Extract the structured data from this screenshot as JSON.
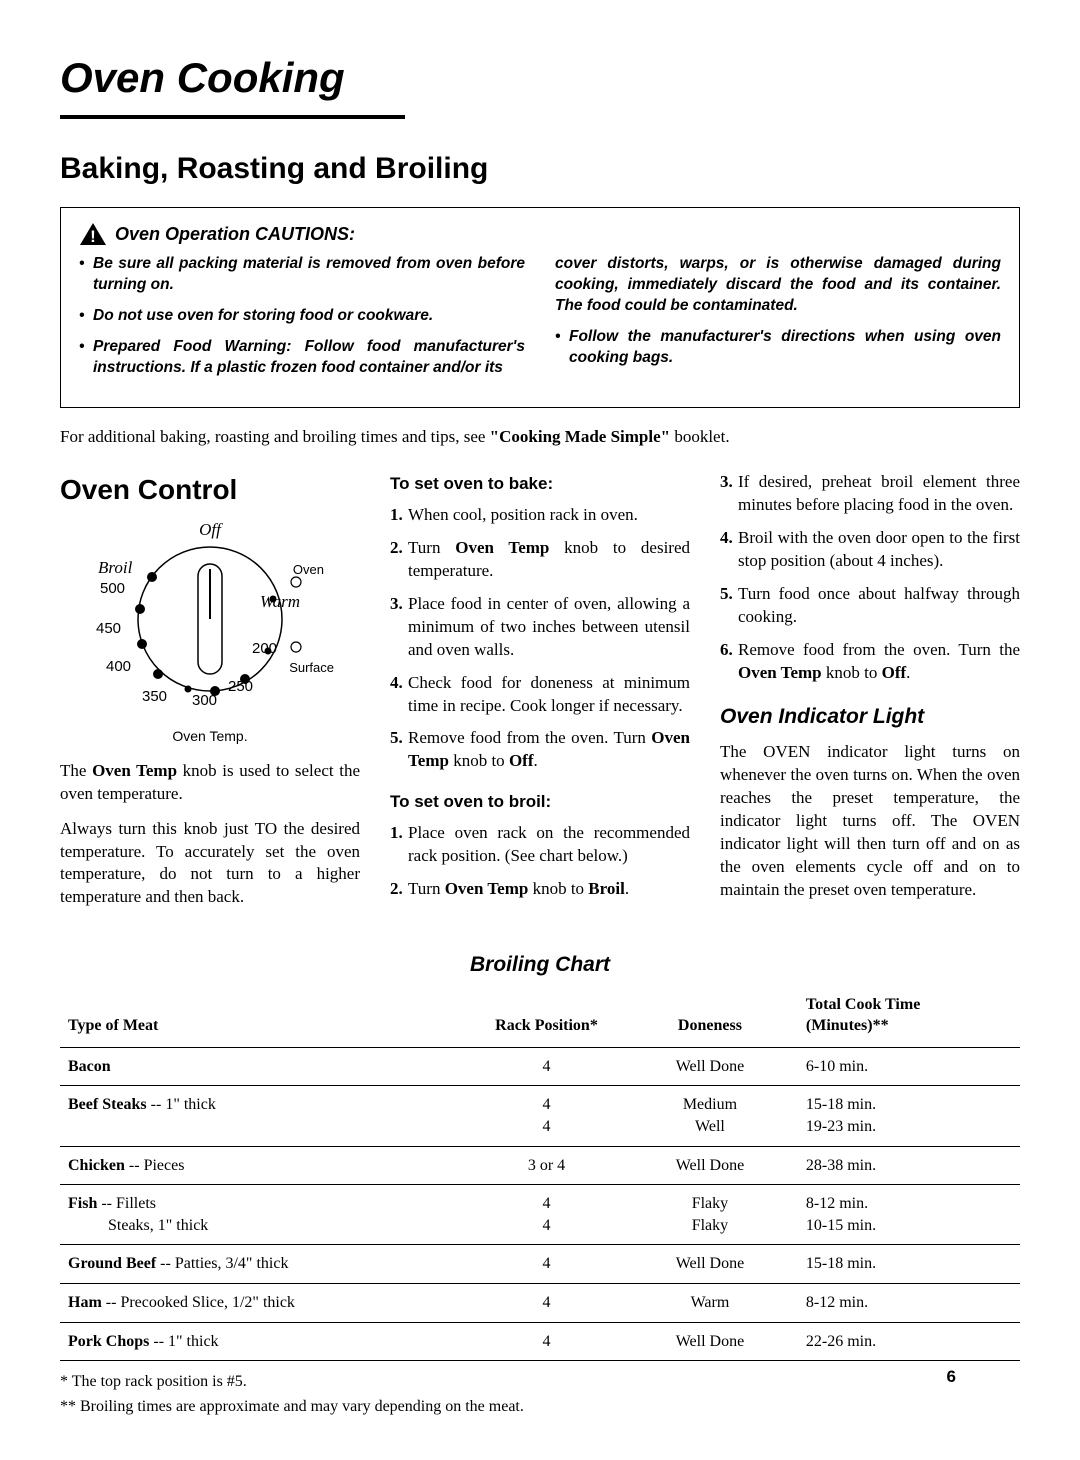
{
  "page": {
    "title": "Oven Cooking",
    "section": "Baking, Roasting and Broiling",
    "number": "6"
  },
  "caution": {
    "heading": "Oven Operation CAUTIONS:",
    "left": [
      "Be sure all packing material is removed from oven before turning on.",
      "Do not use oven for storing food or cookware.",
      "Prepared Food Warning: Follow food manufacturer's instructions. If a plastic frozen food container and/or its"
    ],
    "right_cont": "cover distorts, warps, or is otherwise damaged during cooking, immediately discard the food and its container. The food could be contaminated.",
    "right": [
      "Follow the manufacturer's directions when using oven cooking bags."
    ]
  },
  "additional_info": "For additional baking, roasting and broiling times and tips, see \"Cooking Made Simple\" booklet.",
  "additional_info_bold": "\"Cooking Made Simple\"",
  "oven_control": {
    "title": "Oven Control",
    "dial": {
      "off": "Off",
      "broil": "Broil",
      "warm": "Warm",
      "oven": "Oven",
      "surface": "Surface",
      "temps": [
        "500",
        "450",
        "400",
        "350",
        "300",
        "250",
        "200"
      ],
      "caption": "Oven Temp."
    },
    "p1_pre": "The ",
    "p1_bold": "Oven Temp",
    "p1_post": " knob is used to select the oven temperature.",
    "p2": "Always turn this knob just TO the desired temperature. To accurately set the oven temperature, do not turn to a higher temperature and then back."
  },
  "bake": {
    "heading": "To set oven to bake:",
    "steps": [
      {
        "t": "When cool, position rack in oven."
      },
      {
        "pre": "Turn ",
        "b": "Oven Temp",
        "post": " knob to desired temperature."
      },
      {
        "t": "Place food in center of oven, allowing a minimum of two inches between utensil and oven walls."
      },
      {
        "t": "Check food for doneness at minimum time in recipe. Cook longer if necessary."
      },
      {
        "pre": "Remove food from the oven. Turn ",
        "b": "Oven Temp",
        "post": " knob to ",
        "b2": "Off",
        "post2": "."
      }
    ]
  },
  "broil": {
    "heading": "To set oven to broil:",
    "steps": [
      {
        "t": "Place oven rack on the recommended rack position. (See chart below.)"
      },
      {
        "pre": "Turn ",
        "b": "Oven Temp",
        "post": " knob to ",
        "b2": "Broil",
        "post2": "."
      }
    ]
  },
  "broil_col3": {
    "steps": [
      {
        "t": "If desired, preheat broil element three minutes before placing food in the oven."
      },
      {
        "t": "Broil with the oven door open to the first stop position (about 4 inches)."
      },
      {
        "t": "Turn food once about halfway through cooking."
      },
      {
        "pre": "Remove food from the oven. Turn the ",
        "b": "Oven Temp",
        "post": " knob to ",
        "b2": "Off",
        "post2": "."
      }
    ]
  },
  "indicator": {
    "heading": "Oven Indicator Light",
    "text": "The OVEN indicator light turns on whenever the oven turns on. When the oven reaches the preset temperature, the indicator light turns off. The OVEN indicator light will then turn off and on as the oven elements cycle off and on to maintain the preset oven temperature."
  },
  "chart": {
    "title": "Broiling Chart",
    "columns": [
      "Type of Meat",
      "Rack Position*",
      "Doneness",
      "Total Cook Time (Minutes)**"
    ],
    "col4_line1": "Total Cook Time",
    "col4_line2": "(Minutes)**",
    "rows": [
      {
        "meat_b": "Bacon",
        "meat_rest": "",
        "rack": "4",
        "done": "Well Done",
        "time": "6-10 min."
      },
      {
        "meat_b": "Beef Steaks",
        "meat_rest": " -- 1\" thick",
        "rack": "4\n4",
        "done": "Medium\nWell",
        "time": "15-18 min.\n19-23 min."
      },
      {
        "meat_b": "Chicken",
        "meat_rest": " -- Pieces",
        "rack": "3 or 4",
        "done": "Well Done",
        "time": "28-38 min."
      },
      {
        "meat_b": "Fish",
        "meat_rest": " -- Fillets\n          Steaks, 1\" thick",
        "rack": "4\n4",
        "done": "Flaky\nFlaky",
        "time": "8-12 min.\n10-15 min."
      },
      {
        "meat_b": "Ground Beef",
        "meat_rest": " -- Patties, 3/4\" thick",
        "rack": "4",
        "done": "Well Done",
        "time": "15-18 min."
      },
      {
        "meat_b": "Ham",
        "meat_rest": " -- Precooked Slice, 1/2\" thick",
        "rack": "4",
        "done": "Warm",
        "time": "8-12 min."
      },
      {
        "meat_b": "Pork Chops",
        "meat_rest": " -- 1\" thick",
        "rack": "4",
        "done": "Well Done",
        "time": "22-26 min."
      }
    ],
    "footnote1": "* The top rack position  is #5.",
    "footnote2": "** Broiling times are approximate and may vary depending on the meat."
  },
  "style": {
    "colors": {
      "text": "#000000",
      "bg": "#ffffff"
    },
    "fonts": {
      "heading": "Arial",
      "body": "Georgia/serif"
    }
  }
}
